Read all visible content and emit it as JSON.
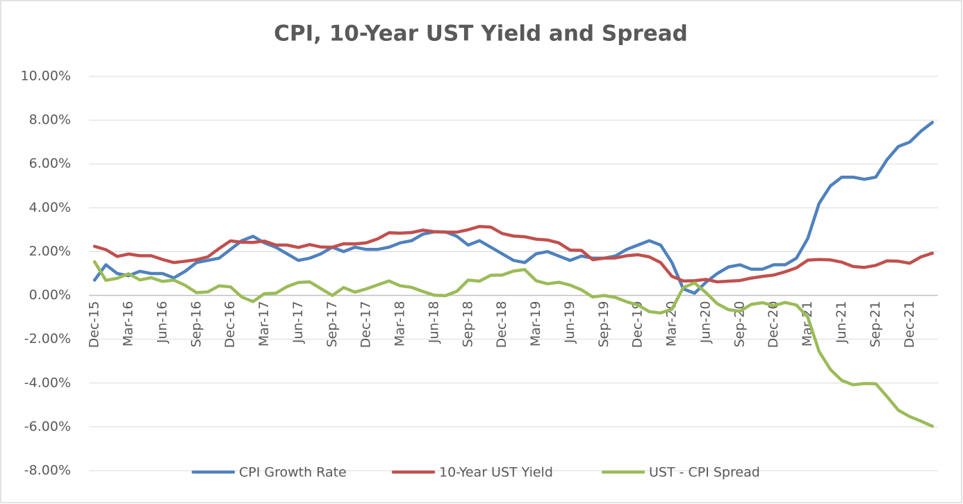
{
  "chart_data": {
    "type": "line",
    "title": "CPI, 10-Year UST Yield and Spread",
    "categories": [
      "Dec-15",
      null,
      null,
      "Mar-16",
      null,
      null,
      "Jun-16",
      null,
      null,
      "Sep-16",
      null,
      null,
      "Dec-16",
      null,
      null,
      "Mar-17",
      null,
      null,
      "Jun-17",
      null,
      null,
      "Sep-17",
      null,
      null,
      "Dec-17",
      null,
      null,
      "Mar-18",
      null,
      null,
      "Jun-18",
      null,
      null,
      "Sep-18",
      null,
      null,
      "Dec-18",
      null,
      null,
      "Mar-19",
      null,
      null,
      "Jun-19",
      null,
      null,
      "Sep-19",
      null,
      null,
      "Dec-19",
      null,
      null,
      "Mar-20",
      null,
      null,
      "Jun-20",
      null,
      null,
      "Sep-20",
      null,
      null,
      "Dec-20",
      null,
      null,
      "Mar-21",
      null,
      null,
      "Jun-21",
      null,
      null,
      "Sep-21",
      null,
      null,
      "Dec-21",
      null,
      null
    ],
    "series": [
      {
        "name": "CPI Growth Rate",
        "color": "#4f81bd",
        "values": [
          0.7,
          1.4,
          1.0,
          0.9,
          1.1,
          1.0,
          1.0,
          0.8,
          1.1,
          1.5,
          1.6,
          1.7,
          2.1,
          2.5,
          2.7,
          2.4,
          2.2,
          1.9,
          1.6,
          1.7,
          1.9,
          2.2,
          2.0,
          2.2,
          2.1,
          2.1,
          2.2,
          2.4,
          2.5,
          2.8,
          2.9,
          2.9,
          2.7,
          2.3,
          2.5,
          2.2,
          1.9,
          1.6,
          1.5,
          1.9,
          2.0,
          1.8,
          1.6,
          1.8,
          1.7,
          1.7,
          1.8,
          2.1,
          2.3,
          2.5,
          2.3,
          1.5,
          0.3,
          0.1,
          0.6,
          1.0,
          1.3,
          1.4,
          1.2,
          1.2,
          1.4,
          1.4,
          1.7,
          2.6,
          4.2,
          5.0,
          5.4,
          5.4,
          5.3,
          5.4,
          6.2,
          6.8,
          7.0,
          7.5,
          7.9
        ]
      },
      {
        "name": "10-Year UST Yield",
        "color": "#c0504d",
        "values": [
          2.24,
          2.09,
          1.78,
          1.89,
          1.81,
          1.81,
          1.64,
          1.5,
          1.56,
          1.63,
          1.76,
          2.14,
          2.49,
          2.43,
          2.42,
          2.48,
          2.3,
          2.3,
          2.19,
          2.32,
          2.21,
          2.2,
          2.36,
          2.35,
          2.4,
          2.58,
          2.86,
          2.84,
          2.87,
          2.98,
          2.91,
          2.89,
          2.89,
          3.0,
          3.15,
          3.12,
          2.83,
          2.71,
          2.68,
          2.57,
          2.53,
          2.4,
          2.07,
          2.06,
          1.63,
          1.7,
          1.71,
          1.81,
          1.86,
          1.76,
          1.5,
          0.87,
          0.66,
          0.67,
          0.73,
          0.62,
          0.65,
          0.68,
          0.79,
          0.87,
          0.93,
          1.08,
          1.26,
          1.61,
          1.64,
          1.62,
          1.52,
          1.32,
          1.28,
          1.37,
          1.58,
          1.56,
          1.47,
          1.76,
          1.93
        ]
      },
      {
        "name": "UST - CPI Spread",
        "color": "#9bbb59",
        "values": [
          1.54,
          0.69,
          0.78,
          0.99,
          0.71,
          0.81,
          0.64,
          0.7,
          0.46,
          0.13,
          0.16,
          0.44,
          0.39,
          -0.07,
          -0.28,
          0.08,
          0.1,
          0.4,
          0.59,
          0.62,
          0.31,
          0.0,
          0.36,
          0.15,
          0.3,
          0.48,
          0.66,
          0.44,
          0.37,
          0.18,
          0.01,
          -0.01,
          0.19,
          0.7,
          0.65,
          0.92,
          0.93,
          1.11,
          1.18,
          0.67,
          0.53,
          0.6,
          0.47,
          0.26,
          -0.07,
          0.0,
          -0.09,
          -0.29,
          -0.44,
          -0.74,
          -0.8,
          -0.63,
          0.36,
          0.57,
          0.13,
          -0.38,
          -0.65,
          -0.72,
          -0.41,
          -0.33,
          -0.47,
          -0.32,
          -0.44,
          -0.99,
          -2.56,
          -3.38,
          -3.88,
          -4.08,
          -4.02,
          -4.03,
          -4.62,
          -5.24,
          -5.53,
          -5.74,
          -5.97
        ]
      }
    ],
    "ylim": [
      -8,
      10
    ],
    "yticks": [
      {
        "value": -8,
        "label": "-8.00%"
      },
      {
        "value": -6,
        "label": "-6.00%"
      },
      {
        "value": -4,
        "label": "-4.00%"
      },
      {
        "value": -2,
        "label": "-2.00%"
      },
      {
        "value": 0,
        "label": "0.00%"
      },
      {
        "value": 2,
        "label": "2.00%"
      },
      {
        "value": 4,
        "label": "4.00%"
      },
      {
        "value": 6,
        "label": "6.00%"
      },
      {
        "value": 8,
        "label": "8.00%"
      },
      {
        "value": 10,
        "label": "10.00%"
      }
    ],
    "grid": true,
    "legend": "bottom"
  }
}
